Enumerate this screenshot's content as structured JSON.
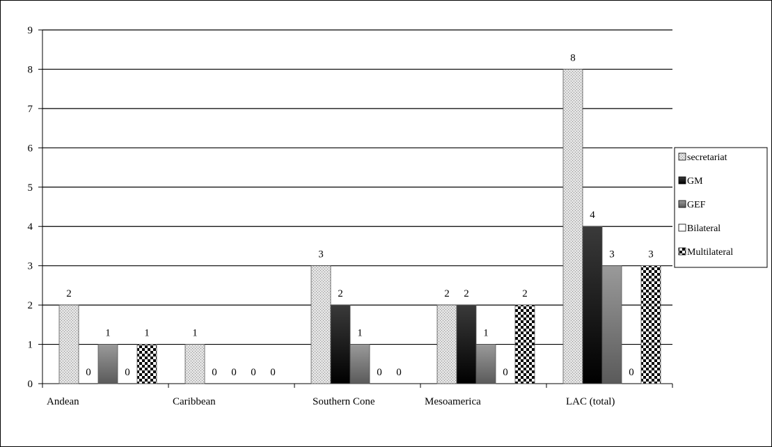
{
  "chart_data": {
    "type": "bar",
    "title": "",
    "xlabel": "",
    "ylabel": "",
    "ylim": [
      0,
      9
    ],
    "yticks": [
      0,
      1,
      2,
      3,
      4,
      5,
      6,
      7,
      8,
      9
    ],
    "ytick_labels": [
      "0",
      "1",
      "2",
      "3",
      "4",
      "5",
      "6",
      "7",
      "8",
      "9"
    ],
    "grid": true,
    "legend_position": "right",
    "categories": [
      "Andean",
      "Caribbean",
      "Southern Cone",
      "Mesoamerica",
      "LAC (total)"
    ],
    "series": [
      {
        "name": "secretariat",
        "values": [
          2,
          1,
          3,
          2,
          8
        ],
        "labels": [
          "2",
          "1",
          "3",
          "2",
          "8"
        ],
        "pattern": "dots-light",
        "color": "#d0d0d0"
      },
      {
        "name": "GM",
        "values": [
          0,
          0,
          2,
          2,
          4
        ],
        "labels": [
          "0",
          "0",
          "2",
          "2",
          "4"
        ],
        "pattern": "gradient-dark",
        "color": "#1a1a1a"
      },
      {
        "name": "GEF",
        "values": [
          1,
          0,
          1,
          1,
          3
        ],
        "labels": [
          "1",
          "0",
          "1",
          "1",
          "3"
        ],
        "pattern": "gradient-gray",
        "color": "#7a7a7a"
      },
      {
        "name": "Bilateral",
        "values": [
          0,
          0,
          0,
          0,
          0
        ],
        "labels": [
          "0",
          "0",
          "0",
          "0",
          "0"
        ],
        "pattern": "white",
        "color": "#ffffff"
      },
      {
        "name": "Multilateral",
        "values": [
          1,
          0,
          0,
          2,
          3
        ],
        "labels": [
          "1",
          "0",
          "0",
          "2",
          "3"
        ],
        "pattern": "checker",
        "color": "#000000"
      }
    ]
  }
}
